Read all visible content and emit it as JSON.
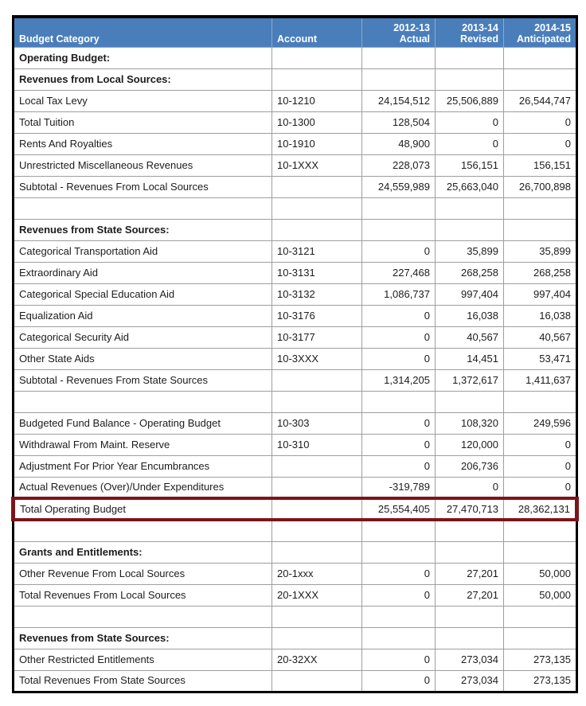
{
  "colors": {
    "header_bg": "#4a7ebb",
    "header_text": "#ffffff",
    "grid_line": "#9e9e9e",
    "outer_border": "#000000",
    "highlight": "#7d1518",
    "text": "#1c1c1c"
  },
  "table": {
    "header": {
      "category": "Budget Category",
      "account": "Account",
      "year_cols": [
        {
          "year": "2012-13",
          "label": "Actual"
        },
        {
          "year": "2013-14",
          "label": "Revised"
        },
        {
          "year": "2014-15",
          "label": "Anticipated"
        }
      ]
    },
    "rows": [
      {
        "type": "section",
        "label": "Operating Budget:",
        "account": "",
        "v": [
          "",
          "",
          ""
        ]
      },
      {
        "type": "section",
        "label": "Revenues from Local Sources:",
        "account": "",
        "v": [
          "",
          "",
          ""
        ]
      },
      {
        "type": "data",
        "label": "Local Tax Levy",
        "account": "10-1210",
        "v": [
          "24,154,512",
          "25,506,889",
          "26,544,747"
        ]
      },
      {
        "type": "data",
        "label": "Total Tuition",
        "account": "10-1300",
        "v": [
          "128,504",
          "0",
          "0"
        ]
      },
      {
        "type": "data",
        "label": "Rents And Royalties",
        "account": "10-1910",
        "v": [
          "48,900",
          "0",
          "0"
        ]
      },
      {
        "type": "data",
        "label": "Unrestricted Miscellaneous Revenues",
        "account": "10-1XXX",
        "v": [
          "228,073",
          "156,151",
          "156,151"
        ]
      },
      {
        "type": "data",
        "label": "Subtotal - Revenues From Local Sources",
        "account": "",
        "v": [
          "24,559,989",
          "25,663,040",
          "26,700,898"
        ]
      },
      {
        "type": "blank",
        "label": "",
        "account": "",
        "v": [
          "",
          "",
          ""
        ]
      },
      {
        "type": "section",
        "label": "Revenues from State Sources:",
        "account": "",
        "v": [
          "",
          "",
          ""
        ]
      },
      {
        "type": "data",
        "label": "Categorical Transportation Aid",
        "account": "10-3121",
        "v": [
          "0",
          "35,899",
          "35,899"
        ]
      },
      {
        "type": "data",
        "label": "Extraordinary Aid",
        "account": "10-3131",
        "v": [
          "227,468",
          "268,258",
          "268,258"
        ]
      },
      {
        "type": "data",
        "label": "Categorical Special Education Aid",
        "account": "10-3132",
        "v": [
          "1,086,737",
          "997,404",
          "997,404"
        ]
      },
      {
        "type": "data",
        "label": "Equalization Aid",
        "account": "10-3176",
        "v": [
          "0",
          "16,038",
          "16,038"
        ]
      },
      {
        "type": "data",
        "label": "Categorical Security Aid",
        "account": "10-3177",
        "v": [
          "0",
          "40,567",
          "40,567"
        ]
      },
      {
        "type": "data",
        "label": "Other State Aids",
        "account": "10-3XXX",
        "v": [
          "0",
          "14,451",
          "53,471"
        ]
      },
      {
        "type": "data",
        "label": "Subtotal - Revenues From State Sources",
        "account": "",
        "v": [
          "1,314,205",
          "1,372,617",
          "1,411,637"
        ]
      },
      {
        "type": "blank",
        "label": "",
        "account": "",
        "v": [
          "",
          "",
          ""
        ]
      },
      {
        "type": "data",
        "label": "Budgeted Fund Balance - Operating Budget",
        "account": "10-303",
        "v": [
          "0",
          "108,320",
          "249,596"
        ]
      },
      {
        "type": "data",
        "label": "Withdrawal From Maint. Reserve",
        "account": "10-310",
        "v": [
          "0",
          "120,000",
          "0"
        ]
      },
      {
        "type": "data",
        "label": "Adjustment For Prior Year Encumbrances",
        "account": "",
        "v": [
          "0",
          "206,736",
          "0"
        ]
      },
      {
        "type": "data",
        "label": "Actual Revenues (Over)/Under Expenditures",
        "account": "",
        "v": [
          "-319,789",
          "0",
          "0"
        ]
      },
      {
        "type": "total",
        "highlight": true,
        "label": "Total Operating Budget",
        "account": "",
        "v": [
          "25,554,405",
          "27,470,713",
          "28,362,131"
        ]
      },
      {
        "type": "blank",
        "label": "",
        "account": "",
        "v": [
          "",
          "",
          ""
        ]
      },
      {
        "type": "section",
        "label": "Grants and Entitlements:",
        "account": "",
        "v": [
          "",
          "",
          ""
        ]
      },
      {
        "type": "data",
        "label": "Other Revenue From Local Sources",
        "account": "20-1xxx",
        "v": [
          "0",
          "27,201",
          "50,000"
        ]
      },
      {
        "type": "data",
        "label": "Total Revenues From Local Sources",
        "account": "20-1XXX",
        "v": [
          "0",
          "27,201",
          "50,000"
        ]
      },
      {
        "type": "blank",
        "label": "",
        "account": "",
        "v": [
          "",
          "",
          ""
        ]
      },
      {
        "type": "section",
        "label": "Revenues from State Sources:",
        "account": "",
        "v": [
          "",
          "",
          ""
        ]
      },
      {
        "type": "data",
        "label": "Other Restricted Entitlements",
        "account": "20-32XX",
        "v": [
          "0",
          "273,034",
          "273,135"
        ]
      },
      {
        "type": "data",
        "label": "Total Revenues From State Sources",
        "account": "",
        "v": [
          "0",
          "273,034",
          "273,135"
        ]
      }
    ]
  }
}
